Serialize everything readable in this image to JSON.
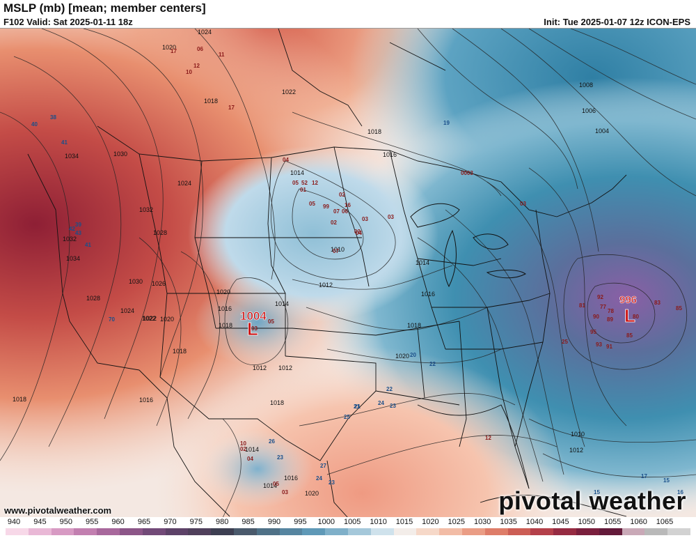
{
  "header": {
    "title": "MSLP (mb) [mean; member centers]",
    "valid": "F102 Valid: Sat 2025-01-11 18z",
    "init": "Init: Tue 2025-01-07 12z ICON-EPS"
  },
  "footer": {
    "website": "www.pivotalweather.com",
    "logo": "pivotal weather"
  },
  "centers": [
    {
      "type": "L",
      "value": "1004",
      "color": "#cc1111"
    },
    {
      "type": "L",
      "value": "996",
      "color": "#cc1111"
    }
  ],
  "isobar_labels": [
    "1024",
    "1020",
    "1022",
    "1018",
    "1030",
    "1034",
    "1032",
    "1028",
    "1024",
    "1026",
    "1030",
    "1034",
    "1032",
    "1028",
    "1024",
    "1022",
    "1020",
    "1018",
    "1016",
    "1014",
    "1012",
    "1010",
    "1014",
    "1012",
    "1016",
    "1018",
    "1014",
    "1012",
    "1018",
    "1020",
    "1022",
    "1018",
    "1016",
    "1014",
    "1016",
    "1018",
    "1020",
    "1008",
    "1006",
    "1004",
    "1010",
    "1012",
    "1020",
    "1018",
    "1016",
    "1014"
  ],
  "member_values": [
    "38",
    "40",
    "41",
    "42",
    "39",
    "43",
    "41",
    "04",
    "05",
    "52",
    "12",
    "01",
    "02",
    "05",
    "99",
    "07",
    "06",
    "16",
    "02",
    "03",
    "02",
    "07",
    "04",
    "03",
    "0003",
    "03",
    "19",
    "17",
    "11",
    "06",
    "17",
    "10",
    "12",
    "70",
    "03",
    "05",
    "25",
    "25",
    "22",
    "20",
    "21",
    "24",
    "23",
    "22",
    "26",
    "23",
    "24",
    "27",
    "23",
    "21",
    "92",
    "77",
    "78",
    "89",
    "90",
    "95",
    "93",
    "91",
    "85",
    "83",
    "80",
    "81",
    "85",
    "17",
    "15",
    "16",
    "15",
    "12",
    "10",
    "02",
    "04",
    "03",
    "05"
  ],
  "colorbar": {
    "ticks": [
      "940",
      "945",
      "950",
      "955",
      "960",
      "965",
      "970",
      "975",
      "980",
      "985",
      "990",
      "995",
      "1000",
      "1005",
      "1010",
      "1015",
      "1020",
      "1025",
      "1030",
      "1035",
      "1040",
      "1045",
      "1050",
      "1055",
      "1060",
      "1065"
    ],
    "colors": [
      "#f7d8e8",
      "#e9b8d6",
      "#d79ac3",
      "#c27fb0",
      "#a8689c",
      "#8c5688",
      "#724a78",
      "#5d4268",
      "#50405c",
      "#3d3f52",
      "#4a5a6c",
      "#4f7187",
      "#5685a0",
      "#5f99b7",
      "#7fb0c9",
      "#a5c8da",
      "#cfe2ec",
      "#f3ede9",
      "#f6d8c8",
      "#f2bca6",
      "#ea9d85",
      "#de7d69",
      "#cc5e55",
      "#b4404a",
      "#962b42",
      "#7a1f3d",
      "#631a3a",
      "#c9a9b7",
      "#b9b9b9",
      "#d2d2d2"
    ]
  }
}
